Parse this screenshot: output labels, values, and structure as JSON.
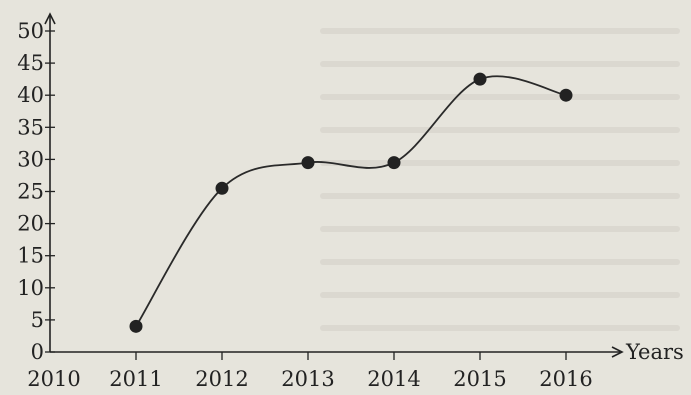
{
  "chart_data": {
    "type": "line",
    "title": "",
    "xlabel": "Years",
    "ylabel": "",
    "x": [
      2011,
      2012,
      2013,
      2014,
      2015,
      2016
    ],
    "values": [
      4,
      25.5,
      29.5,
      29.5,
      42.5,
      40
    ],
    "xticks": [
      "2010",
      "2011",
      "2012",
      "2013",
      "2014",
      "2015",
      "2016"
    ],
    "yticks": [
      "0",
      "5",
      "10",
      "15",
      "20",
      "25",
      "30",
      "35",
      "40",
      "45",
      "50"
    ],
    "xlim": [
      2010,
      2016
    ],
    "ylim": [
      0,
      50
    ],
    "grid": false,
    "smooth": true
  },
  "colors": {
    "background": "#e6e4dc",
    "axis": "#222222",
    "line": "#2a2a2a",
    "marker": "#222222"
  }
}
